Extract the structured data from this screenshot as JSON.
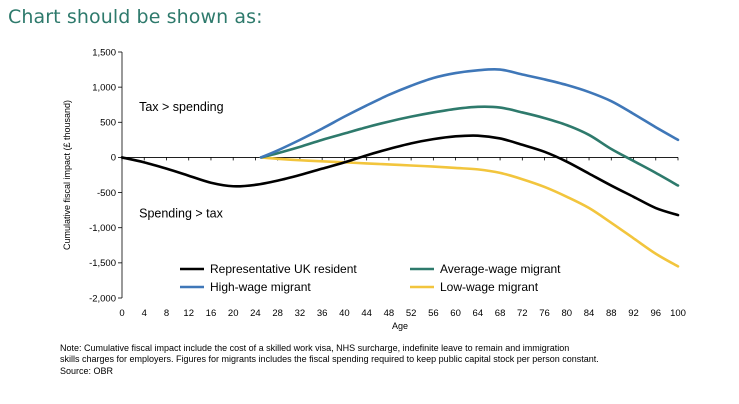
{
  "heading": "Chart should be shown as:",
  "chart_data": {
    "type": "line",
    "title": "",
    "xlabel": "Age",
    "ylabel": "Cumulative fiscal impact (£ thousand)",
    "xlim": [
      0,
      100
    ],
    "ylim": [
      -2000,
      1500
    ],
    "x_ticks": [
      0,
      4,
      8,
      12,
      16,
      20,
      24,
      28,
      32,
      36,
      40,
      44,
      48,
      52,
      56,
      60,
      64,
      68,
      72,
      76,
      80,
      84,
      88,
      92,
      96,
      100
    ],
    "y_ticks": [
      1500,
      1000,
      500,
      0,
      -500,
      -1000,
      -1500,
      -2000
    ],
    "y_tick_labels": [
      "1,500",
      "1,000",
      "500",
      "0",
      "-500",
      "-1,000",
      "-1,500",
      "-2,000"
    ],
    "annotations": [
      {
        "text": "Tax > spending",
        "x": 2,
        "y": 720
      },
      {
        "text": "Spending > tax",
        "x": 2,
        "y": -800
      }
    ],
    "legend_position": "bottom-center",
    "series": [
      {
        "name": "Representative UK resident",
        "color": "#000000",
        "x": [
          0,
          4,
          8,
          12,
          16,
          20,
          24,
          28,
          32,
          36,
          40,
          44,
          48,
          52,
          56,
          60,
          64,
          68,
          72,
          76,
          80,
          84,
          88,
          92,
          96,
          100
        ],
        "y": [
          0,
          -70,
          -160,
          -260,
          -360,
          -410,
          -390,
          -330,
          -250,
          -160,
          -70,
          30,
          120,
          200,
          260,
          300,
          310,
          270,
          180,
          80,
          -60,
          -230,
          -400,
          -560,
          -720,
          -820
        ]
      },
      {
        "name": "Average-wage migrant",
        "color": "#2e7a6c",
        "x": [
          25,
          28,
          32,
          36,
          40,
          44,
          48,
          52,
          56,
          60,
          64,
          68,
          72,
          76,
          80,
          84,
          88,
          92,
          96,
          100
        ],
        "y": [
          0,
          60,
          150,
          250,
          340,
          430,
          510,
          580,
          640,
          690,
          720,
          710,
          640,
          560,
          460,
          320,
          120,
          -50,
          -220,
          -400
        ]
      },
      {
        "name": "High-wage migrant",
        "color": "#3f77b8",
        "x": [
          25,
          28,
          32,
          36,
          40,
          44,
          48,
          52,
          56,
          60,
          64,
          68,
          72,
          76,
          80,
          84,
          88,
          92,
          96,
          100
        ],
        "y": [
          0,
          100,
          250,
          410,
          580,
          740,
          890,
          1020,
          1130,
          1200,
          1240,
          1250,
          1180,
          1110,
          1030,
          930,
          800,
          620,
          430,
          250
        ]
      },
      {
        "name": "Low-wage migrant",
        "color": "#f2c53d",
        "x": [
          25,
          28,
          32,
          36,
          40,
          44,
          48,
          52,
          56,
          60,
          64,
          68,
          72,
          76,
          80,
          84,
          88,
          92,
          96,
          100
        ],
        "y": [
          0,
          -20,
          -40,
          -55,
          -70,
          -85,
          -100,
          -115,
          -130,
          -150,
          -170,
          -220,
          -310,
          -420,
          -560,
          -720,
          -930,
          -1150,
          -1370,
          -1550
        ]
      }
    ]
  },
  "note": {
    "lines": [
      "Note: Cumulative fiscal impact include the cost of a skilled work visa, NHS surcharge, indefinite leave to remain and immigration",
      "skills charges for employers. Figures for migrants includes the fiscal spending required to keep public capital stock per person constant.",
      "Source: OBR"
    ]
  }
}
